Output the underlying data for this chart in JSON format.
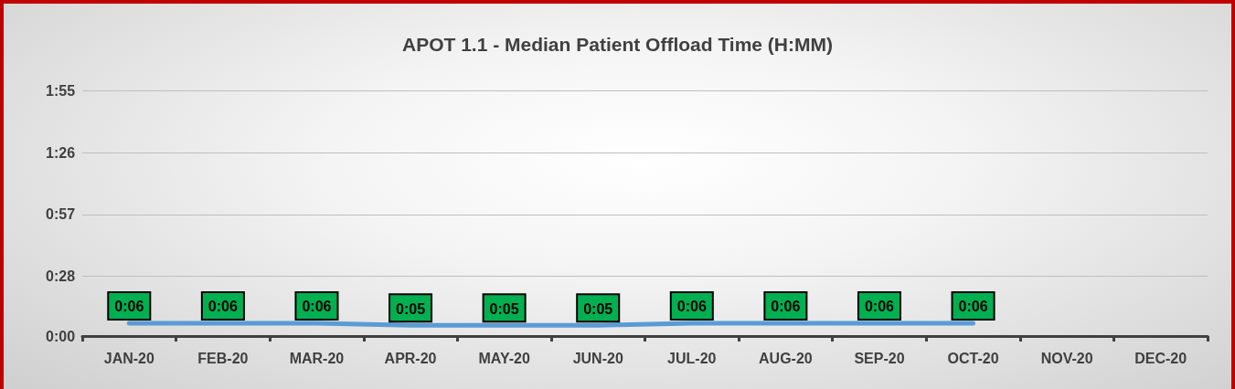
{
  "chart_data": {
    "type": "line",
    "title": "APOT 1.1 - Median Patient Offload Time (H:MM)",
    "categories": [
      "JAN-20",
      "FEB-20",
      "MAR-20",
      "APR-20",
      "MAY-20",
      "JUN-20",
      "JUL-20",
      "AUG-20",
      "SEP-20",
      "OCT-20",
      "NOV-20",
      "DEC-20"
    ],
    "series": [
      {
        "color": "#5b9bd5",
        "values": [
          0.1,
          0.1,
          0.1,
          0.083,
          0.083,
          0.083,
          0.1,
          0.1,
          0.1,
          0.1,
          null,
          null
        ],
        "value_labels": [
          "0:06",
          "0:06",
          "0:06",
          "0:05",
          "0:05",
          "0:05",
          "0:06",
          "0:06",
          "0:06",
          "0:06",
          null,
          null
        ]
      }
    ],
    "ylim": [
      0,
      1.92
    ],
    "yticks": [
      {
        "value": 0,
        "label": "0:00"
      },
      {
        "value": 0.4667,
        "label": "0:28"
      },
      {
        "value": 0.95,
        "label": "0:57"
      },
      {
        "value": 1.4333,
        "label": "1:26"
      },
      {
        "value": 1.9167,
        "label": "1:55"
      }
    ],
    "grid": "y",
    "line_style": "solid"
  }
}
